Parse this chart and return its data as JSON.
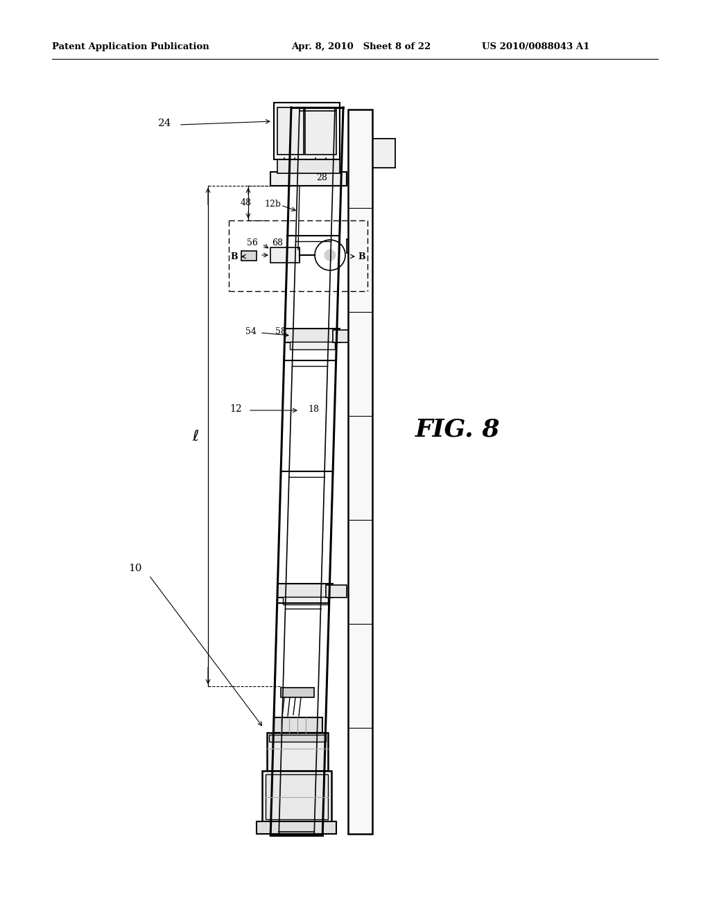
{
  "background_color": "#ffffff",
  "header_left": "Patent Application Publication",
  "header_mid": "Apr. 8, 2010   Sheet 8 of 22",
  "header_right": "US 2010/0088043 A1",
  "fig_label": "FIG. 8"
}
